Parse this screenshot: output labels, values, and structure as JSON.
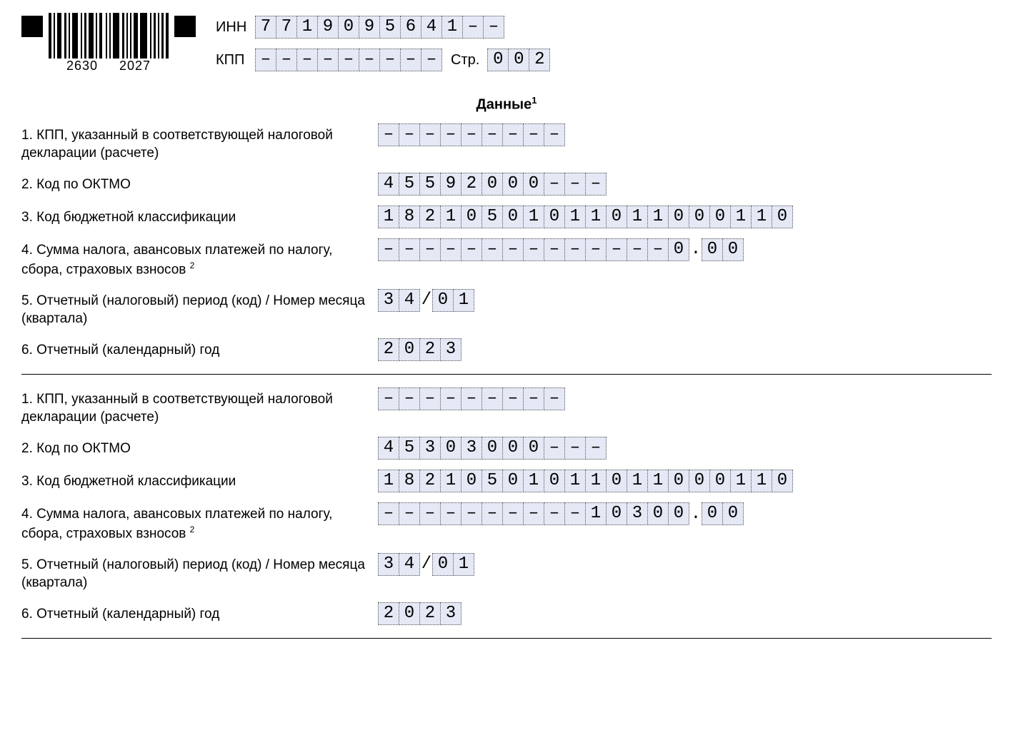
{
  "cell_bg": "#e5e8f5",
  "header": {
    "barcode_left": "2630",
    "barcode_right": "2027",
    "inn_label": "ИНН",
    "kpp_label": "КПП",
    "page_label": "Стр.",
    "inn": [
      "7",
      "7",
      "1",
      "9",
      "0",
      "9",
      "5",
      "6",
      "4",
      "1",
      "–",
      "–"
    ],
    "kpp": [
      "–",
      "–",
      "–",
      "–",
      "–",
      "–",
      "–",
      "–",
      "–"
    ],
    "page": [
      "0",
      "0",
      "2"
    ]
  },
  "title": "Данные",
  "title_sup": "1",
  "row_labels": {
    "r1": "1. КПП, указанный в соответствующей налоговой декларации (расчете)",
    "r2": "2. Код по ОКТМО",
    "r3": "3. Код бюджетной классификации",
    "r4_a": "4. Сумма налога, авансовых платежей по налогу, сбора, страховых взносов",
    "r4_sup": "2",
    "r5": "5. Отчетный (налоговый) период (код) / Номер месяца (квартала)",
    "r6": "6. Отчетный (календарный) год"
  },
  "blocks": [
    {
      "kpp": [
        "–",
        "–",
        "–",
        "–",
        "–",
        "–",
        "–",
        "–",
        "–"
      ],
      "oktmo": [
        "4",
        "5",
        "5",
        "9",
        "2",
        "0",
        "0",
        "0",
        "–",
        "–",
        "–"
      ],
      "kbk": [
        "1",
        "8",
        "2",
        "1",
        "0",
        "5",
        "0",
        "1",
        "0",
        "1",
        "1",
        "0",
        "1",
        "1",
        "0",
        "0",
        "0",
        "1",
        "1",
        "0"
      ],
      "sum_int": [
        "–",
        "–",
        "–",
        "–",
        "–",
        "–",
        "–",
        "–",
        "–",
        "–",
        "–",
        "–",
        "–",
        "–",
        "0"
      ],
      "sum_dec": [
        "0",
        "0"
      ],
      "period_a": [
        "3",
        "4"
      ],
      "period_b": [
        "0",
        "1"
      ],
      "year": [
        "2",
        "0",
        "2",
        "3"
      ]
    },
    {
      "kpp": [
        "–",
        "–",
        "–",
        "–",
        "–",
        "–",
        "–",
        "–",
        "–"
      ],
      "oktmo": [
        "4",
        "5",
        "3",
        "0",
        "3",
        "0",
        "0",
        "0",
        "–",
        "–",
        "–"
      ],
      "kbk": [
        "1",
        "8",
        "2",
        "1",
        "0",
        "5",
        "0",
        "1",
        "0",
        "1",
        "1",
        "0",
        "1",
        "1",
        "0",
        "0",
        "0",
        "1",
        "1",
        "0"
      ],
      "sum_int": [
        "–",
        "–",
        "–",
        "–",
        "–",
        "–",
        "–",
        "–",
        "–",
        "–",
        "1",
        "0",
        "3",
        "0",
        "0"
      ],
      "sum_dec": [
        "0",
        "0"
      ],
      "period_a": [
        "3",
        "4"
      ],
      "period_b": [
        "0",
        "1"
      ],
      "year": [
        "2",
        "0",
        "2",
        "3"
      ]
    }
  ]
}
